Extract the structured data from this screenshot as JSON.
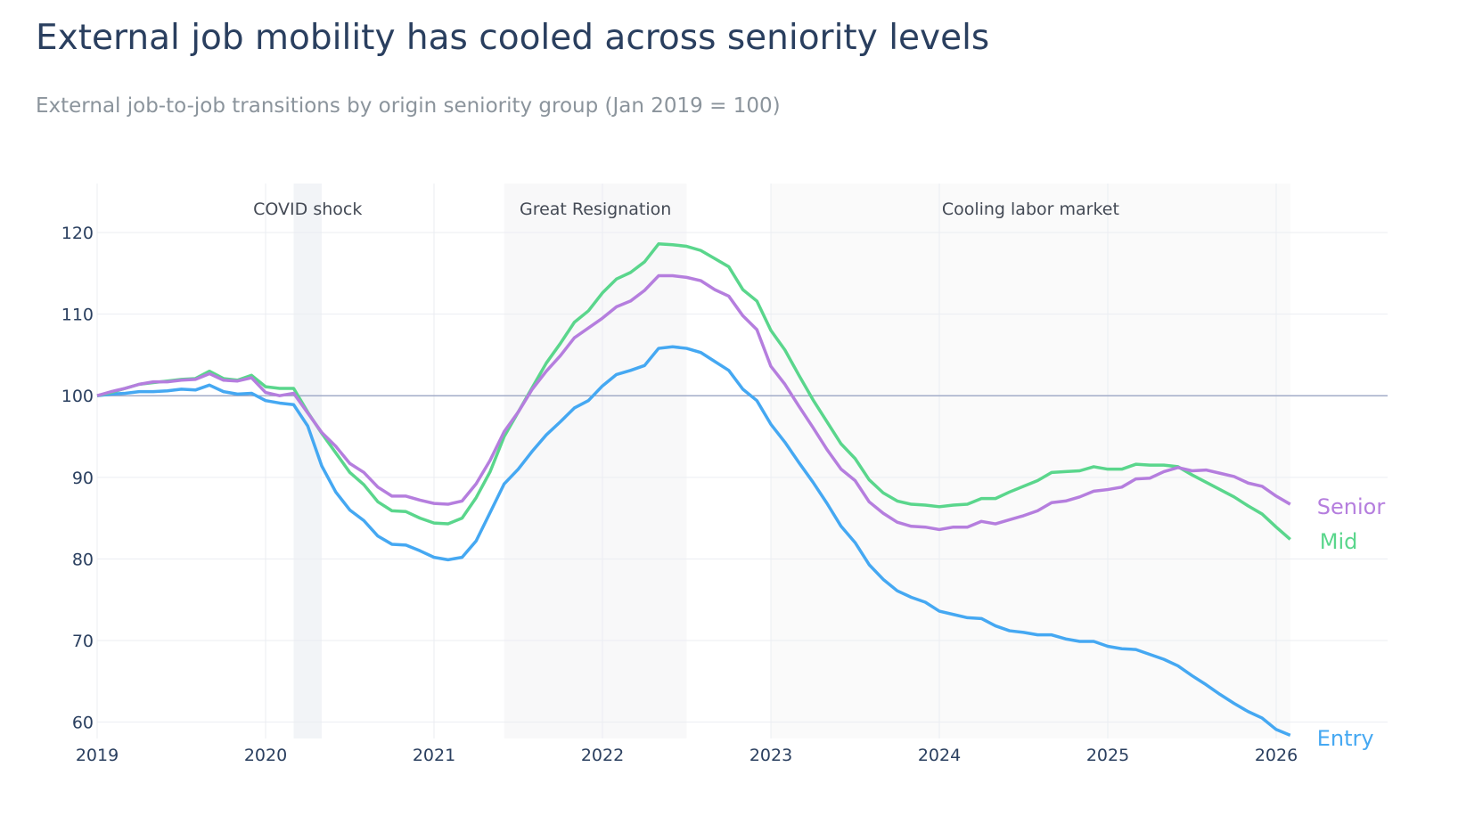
{
  "chart_data": {
    "type": "line",
    "title": "External job mobility has cooled across seniority levels",
    "subtitle": "External job-to-job transitions by origin seniority group (Jan 2019 = 100)",
    "xlabel": "",
    "ylabel": "",
    "x_start": "2019-01",
    "x_frequency": "monthly",
    "xlim": [
      "2019-01",
      "2026-08"
    ],
    "ylim": [
      58,
      126
    ],
    "x_ticks": [
      "2019",
      "2020",
      "2021",
      "2022",
      "2023",
      "2024",
      "2025",
      "2026"
    ],
    "y_ticks": [
      60,
      70,
      80,
      90,
      100,
      110,
      120
    ],
    "grid": true,
    "legend": "end-of-line labels",
    "reference_line": 100,
    "reference_color": "#a3acc8",
    "shaded_periods": [
      {
        "label": "COVID shock",
        "start": "2020-03",
        "end": "2020-05",
        "color": "#f2f4f7"
      },
      {
        "label": "Great Resignation",
        "start": "2021-06",
        "end": "2022-07",
        "color": "#f8f8f9"
      },
      {
        "label": "Cooling labor market",
        "start": "2023-01",
        "end": "2026-02",
        "color": "#fafafa"
      }
    ],
    "series": [
      {
        "name": "Entry",
        "color": "#45a8f2",
        "values": [
          100,
          100.2,
          100.3,
          100.5,
          100.5,
          100.6,
          100.8,
          100.7,
          101.3,
          100.5,
          100.2,
          100.3,
          99.4,
          99.1,
          98.9,
          96.3,
          91.4,
          88.2,
          86.0,
          84.7,
          82.8,
          81.8,
          81.7,
          81.0,
          80.2,
          79.9,
          80.2,
          82.2,
          85.7,
          89.2,
          91.0,
          93.2,
          95.2,
          96.8,
          98.5,
          99.4,
          101.2,
          102.6,
          103.1,
          103.7,
          105.8,
          106.0,
          105.8,
          105.3,
          104.2,
          103.1,
          100.8,
          99.4,
          96.5,
          94.3,
          91.8,
          89.4,
          86.8,
          84.0,
          82.0,
          79.3,
          77.5,
          76.1,
          75.3,
          74.7,
          73.6,
          73.2,
          72.8,
          72.7,
          71.8,
          71.2,
          71.0,
          70.7,
          70.7,
          70.2,
          69.9,
          69.9,
          69.3,
          69.0,
          68.9,
          68.3,
          67.7,
          66.9,
          65.7,
          64.6,
          63.4,
          62.3,
          61.3,
          60.5,
          59.1,
          58.4
        ]
      },
      {
        "name": "Mid",
        "color": "#5ad68c",
        "values": [
          100,
          100.4,
          100.9,
          101.4,
          101.6,
          101.8,
          102.0,
          102.1,
          103.0,
          102.1,
          101.9,
          102.5,
          101.1,
          100.9,
          100.9,
          98.0,
          95.4,
          93.0,
          90.6,
          89.1,
          87.0,
          85.9,
          85.8,
          85.0,
          84.4,
          84.3,
          85.0,
          87.5,
          90.7,
          95.0,
          98.0,
          101.0,
          104.0,
          106.4,
          109.0,
          110.4,
          112.6,
          114.3,
          115.1,
          116.4,
          118.6,
          118.5,
          118.3,
          117.8,
          116.8,
          115.8,
          113.0,
          111.6,
          108.0,
          105.6,
          102.5,
          99.5,
          96.8,
          94.1,
          92.3,
          89.7,
          88.1,
          87.1,
          86.7,
          86.6,
          86.4,
          86.6,
          86.7,
          87.4,
          87.4,
          88.2,
          88.9,
          89.6,
          90.6,
          90.7,
          90.8,
          91.3,
          91.0,
          91.0,
          91.6,
          91.5,
          91.5,
          91.3,
          90.3,
          89.4,
          88.5,
          87.6,
          86.5,
          85.5,
          83.9,
          82.4
        ]
      },
      {
        "name": "Senior",
        "color": "#b57ede",
        "values": [
          100,
          100.5,
          100.9,
          101.4,
          101.7,
          101.7,
          101.9,
          102.0,
          102.7,
          101.9,
          101.8,
          102.2,
          100.4,
          100.0,
          100.3,
          97.9,
          95.5,
          93.8,
          91.7,
          90.6,
          88.8,
          87.7,
          87.7,
          87.2,
          86.8,
          86.7,
          87.1,
          89.2,
          92.1,
          95.6,
          98.0,
          100.8,
          103.0,
          104.9,
          107.1,
          108.3,
          109.5,
          110.9,
          111.6,
          112.9,
          114.7,
          114.7,
          114.5,
          114.1,
          113.0,
          112.2,
          109.8,
          108.1,
          103.6,
          101.4,
          98.7,
          96.1,
          93.4,
          91.0,
          89.6,
          87.0,
          85.6,
          84.5,
          84.0,
          83.9,
          83.6,
          83.9,
          83.9,
          84.6,
          84.3,
          84.8,
          85.3,
          85.9,
          86.9,
          87.1,
          87.6,
          88.3,
          88.5,
          88.8,
          89.8,
          89.9,
          90.7,
          91.2,
          90.8,
          90.9,
          90.5,
          90.1,
          89.3,
          88.9,
          87.7,
          86.7
        ]
      }
    ]
  }
}
